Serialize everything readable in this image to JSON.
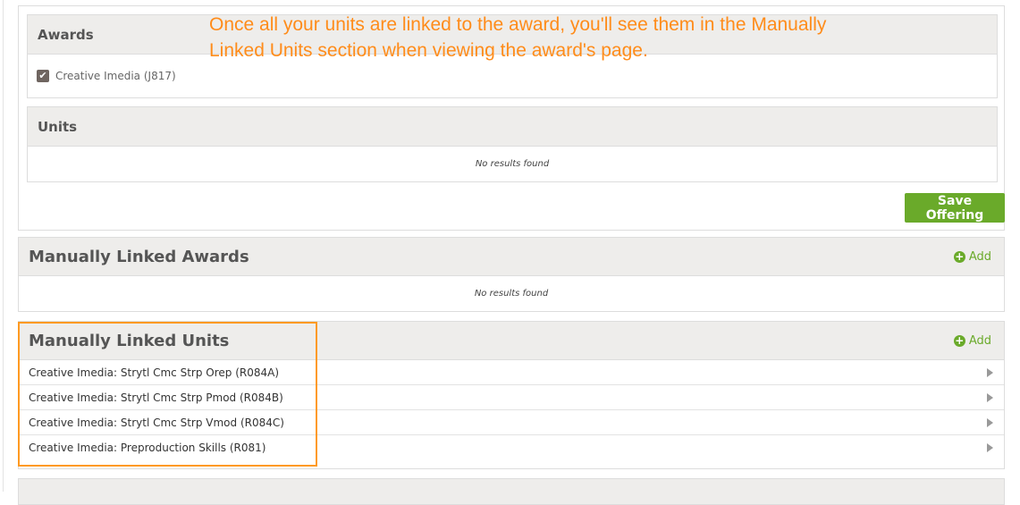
{
  "annotation": {
    "line1": "Once all your units are linked to the award, you'll see them in the Manually",
    "line2": "Linked Units section when viewing the award's page."
  },
  "awards": {
    "title": "Awards",
    "items": [
      {
        "label": "Creative Imedia (J817)",
        "checked": true
      }
    ]
  },
  "units": {
    "title": "Units",
    "empty": "No results found"
  },
  "save_label": "Save Offering",
  "manual_awards": {
    "title": "Manually Linked Awards",
    "add": "Add",
    "empty": "No results found"
  },
  "manual_units": {
    "title": "Manually Linked Units",
    "add": "Add",
    "items": [
      "Creative Imedia: Strytl Cmc Strp Orep (R084A)",
      "Creative Imedia: Strytl Cmc Strp Pmod (R084B)",
      "Creative Imedia: Strytl Cmc Strp Vmod (R084C)",
      "Creative Imedia: Preproduction Skills (R081)"
    ]
  },
  "colors": {
    "accent": "#6aaa2a",
    "annotation": "#ff8c1a"
  }
}
